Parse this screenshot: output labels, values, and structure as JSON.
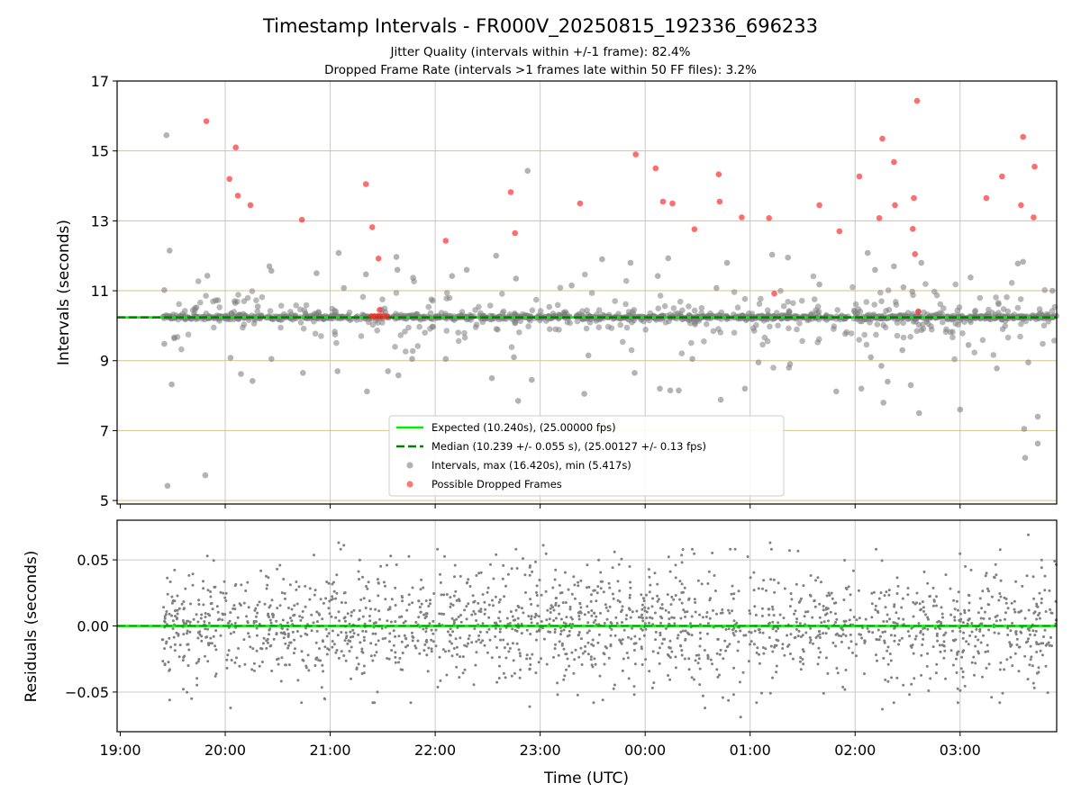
{
  "figure": {
    "title": "Timestamp Intervals - FR000V_20250815_192336_696233",
    "subtitle_1": "Jitter Quality (intervals within +/-1 frame): 82.4%",
    "subtitle_2": "Dropped Frame Rate (intervals >1 frames late within 50 FF files): 3.2%"
  },
  "colors": {
    "expected": "#00ee00",
    "median": "#008000",
    "intervals": "#808080",
    "dropped": "#ff2020",
    "hgrid": "#d4c48a",
    "vgrid": "#c8c8c8",
    "residual_grid": "#cccccc"
  },
  "chart_data": [
    {
      "type": "scatter",
      "ylabel": "Intervals (seconds)",
      "xlabel": "",
      "ylim": [
        4.9,
        17.0
      ],
      "y_ticks": [
        5,
        7,
        9,
        11,
        13,
        15,
        17
      ],
      "y_tick_labels": [
        "5",
        "7",
        "9",
        "11",
        "13",
        "15",
        "17"
      ],
      "x_range_hours": [
        18.97,
        27.92
      ],
      "x_ticks": [
        19,
        20,
        21,
        22,
        23,
        24,
        25,
        26,
        27
      ],
      "grid": true,
      "legend_placement": "lower center",
      "legend": [
        {
          "key": "expected",
          "label": "Expected (10.240s), (25.00000 fps)"
        },
        {
          "key": "median",
          "label": "Median (10.239 +/- 0.055 s), (25.00127 +/- 0.13 fps)"
        },
        {
          "key": "intervals",
          "label": "Intervals, max (16.420s), min (5.417s)"
        },
        {
          "key": "dropped",
          "label": "Possible Dropped Frames"
        }
      ],
      "expected_interval": 10.24,
      "median_interval": 10.239,
      "interval_max": 16.42,
      "interval_min": 5.417,
      "x_start_hours": 19.4,
      "x_end_hours": 27.92,
      "dropped_frames": [
        [
          19.82,
          15.85
        ],
        [
          20.04,
          14.2
        ],
        [
          20.1,
          15.1
        ],
        [
          20.12,
          13.72
        ],
        [
          20.24,
          13.45
        ],
        [
          20.73,
          13.03
        ],
        [
          21.34,
          14.05
        ],
        [
          21.4,
          12.82
        ],
        [
          21.46,
          11.92
        ],
        [
          22.1,
          12.43
        ],
        [
          22.72,
          13.82
        ],
        [
          22.76,
          12.65
        ],
        [
          23.38,
          13.5
        ],
        [
          23.91,
          14.9
        ],
        [
          24.1,
          14.5
        ],
        [
          24.17,
          13.55
        ],
        [
          24.26,
          13.5
        ],
        [
          24.47,
          12.76
        ],
        [
          24.7,
          14.33
        ],
        [
          24.71,
          13.55
        ],
        [
          24.92,
          13.1
        ],
        [
          25.18,
          13.08
        ],
        [
          25.23,
          10.92
        ],
        [
          25.66,
          13.45
        ],
        [
          25.85,
          12.7
        ],
        [
          26.04,
          14.27
        ],
        [
          26.23,
          13.08
        ],
        [
          26.26,
          15.35
        ],
        [
          26.37,
          14.68
        ],
        [
          26.38,
          13.45
        ],
        [
          26.55,
          12.77
        ],
        [
          26.56,
          13.65
        ],
        [
          26.57,
          12.05
        ],
        [
          26.59,
          16.43
        ],
        [
          26.6,
          10.4
        ],
        [
          27.25,
          13.65
        ],
        [
          27.4,
          14.27
        ],
        [
          27.58,
          13.45
        ],
        [
          27.6,
          15.4
        ],
        [
          27.7,
          13.1
        ],
        [
          27.71,
          14.55
        ],
        [
          21.39,
          10.27
        ],
        [
          21.42,
          10.27
        ],
        [
          21.45,
          10.27
        ],
        [
          21.48,
          10.27
        ],
        [
          21.51,
          10.27
        ],
        [
          21.54,
          10.27
        ],
        [
          21.47,
          10.45
        ]
      ],
      "intervals_outliers": [
        [
          19.44,
          15.45
        ],
        [
          19.47,
          12.15
        ],
        [
          19.42,
          11.02
        ],
        [
          19.45,
          5.42
        ],
        [
          19.81,
          5.72
        ],
        [
          19.83,
          11.43
        ],
        [
          19.49,
          8.32
        ],
        [
          19.42,
          9.48
        ],
        [
          19.93,
          10.73
        ],
        [
          20.31,
          10.55
        ],
        [
          20.42,
          11.7
        ],
        [
          20.44,
          11.57
        ],
        [
          20.87,
          11.5
        ],
        [
          21.08,
          12.08
        ],
        [
          21.13,
          11.08
        ],
        [
          21.34,
          11.47
        ],
        [
          21.35,
          8.12
        ],
        [
          21.63,
          11.97
        ],
        [
          21.64,
          11.6
        ],
        [
          21.65,
          8.58
        ],
        [
          21.79,
          11.37
        ],
        [
          22.16,
          11.42
        ],
        [
          22.3,
          11.6
        ],
        [
          22.58,
          12.0
        ],
        [
          22.77,
          11.35
        ],
        [
          22.79,
          7.85
        ],
        [
          22.88,
          14.43
        ],
        [
          22.92,
          8.45
        ],
        [
          23.3,
          11.15
        ],
        [
          23.42,
          8.05
        ],
        [
          23.59,
          11.9
        ],
        [
          23.86,
          11.8
        ],
        [
          23.9,
          8.65
        ],
        [
          24.12,
          11.42
        ],
        [
          24.14,
          8.2
        ],
        [
          24.22,
          11.93
        ],
        [
          24.24,
          8.15
        ],
        [
          24.32,
          8.15
        ],
        [
          24.68,
          11.08
        ],
        [
          24.72,
          7.88
        ],
        [
          24.78,
          11.8
        ],
        [
          24.95,
          8.2
        ],
        [
          25.21,
          12.03
        ],
        [
          25.36,
          11.95
        ],
        [
          25.37,
          8.8
        ],
        [
          25.66,
          11.18
        ],
        [
          25.82,
          8.12
        ],
        [
          26.12,
          12.08
        ],
        [
          26.19,
          11.6
        ],
        [
          26.27,
          7.8
        ],
        [
          26.31,
          8.4
        ],
        [
          26.37,
          11.7
        ],
        [
          26.46,
          11.1
        ],
        [
          26.53,
          8.3
        ],
        [
          26.61,
          7.5
        ],
        [
          26.63,
          11.8
        ],
        [
          27.0,
          7.6
        ],
        [
          27.1,
          11.38
        ],
        [
          27.35,
          8.78
        ],
        [
          27.55,
          11.78
        ],
        [
          27.6,
          11.83
        ],
        [
          27.61,
          7.05
        ],
        [
          27.62,
          6.22
        ],
        [
          27.74,
          7.4
        ],
        [
          27.74,
          6.63
        ],
        [
          27.88,
          11.0
        ],
        [
          20.05,
          9.08
        ],
        [
          20.15,
          8.62
        ],
        [
          20.26,
          8.42
        ],
        [
          20.44,
          9.05
        ],
        [
          20.74,
          8.65
        ],
        [
          21.07,
          8.7
        ],
        [
          21.55,
          8.7
        ],
        [
          21.78,
          9.05
        ],
        [
          22.1,
          9.05
        ],
        [
          22.54,
          8.5
        ],
        [
          22.75,
          9.1
        ],
        [
          23.46,
          9.15
        ],
        [
          24.45,
          9.05
        ],
        [
          25.08,
          8.95
        ],
        [
          25.38,
          8.9
        ],
        [
          26.06,
          8.2
        ],
        [
          26.15,
          9.1
        ],
        [
          26.25,
          8.85
        ],
        [
          26.45,
          9.3
        ],
        [
          27.08,
          9.45
        ],
        [
          27.65,
          8.95
        ]
      ],
      "note_dense_band": "About 2000 intervals cluster tightly around 10.24 s with moderate scatter between ~9 and ~11.5 s."
    },
    {
      "type": "scatter",
      "xlabel": "Time (UTC)",
      "ylabel": "Residuals (seconds)",
      "ylim": [
        -0.08,
        0.08
      ],
      "y_ticks": [
        0.05,
        0.0,
        -0.05
      ],
      "y_tick_labels": [
        "0.05",
        "0.00",
        "−0.05"
      ],
      "x_range_hours": [
        18.97,
        27.92
      ],
      "x_ticks": [
        19,
        20,
        21,
        22,
        23,
        24,
        25,
        26,
        27
      ],
      "x_tick_labels": [
        "19:00",
        "20:00",
        "21:00",
        "22:00",
        "23:00",
        "00:00",
        "01:00",
        "02:00",
        "03:00"
      ],
      "grid": true,
      "residual_std": 0.022,
      "residual_extremes": [
        [
          19.83,
          0.053
        ],
        [
          21.08,
          0.063
        ],
        [
          21.13,
          0.061
        ],
        [
          22.58,
          0.054
        ],
        [
          22.77,
          0.058
        ],
        [
          23.03,
          0.061
        ],
        [
          25.19,
          0.063
        ],
        [
          26.2,
          0.058
        ],
        [
          26.7,
          -0.049
        ],
        [
          27.05,
          0.045
        ],
        [
          27.65,
          0.069
        ],
        [
          27.9,
          0.049
        ],
        [
          19.47,
          -0.056
        ],
        [
          19.68,
          -0.055
        ],
        [
          20.05,
          -0.062
        ],
        [
          21.45,
          -0.05
        ],
        [
          22.9,
          -0.061
        ],
        [
          24.57,
          -0.062
        ],
        [
          24.91,
          -0.069
        ],
        [
          26.26,
          -0.063
        ],
        [
          27.3,
          -0.054
        ]
      ]
    }
  ]
}
